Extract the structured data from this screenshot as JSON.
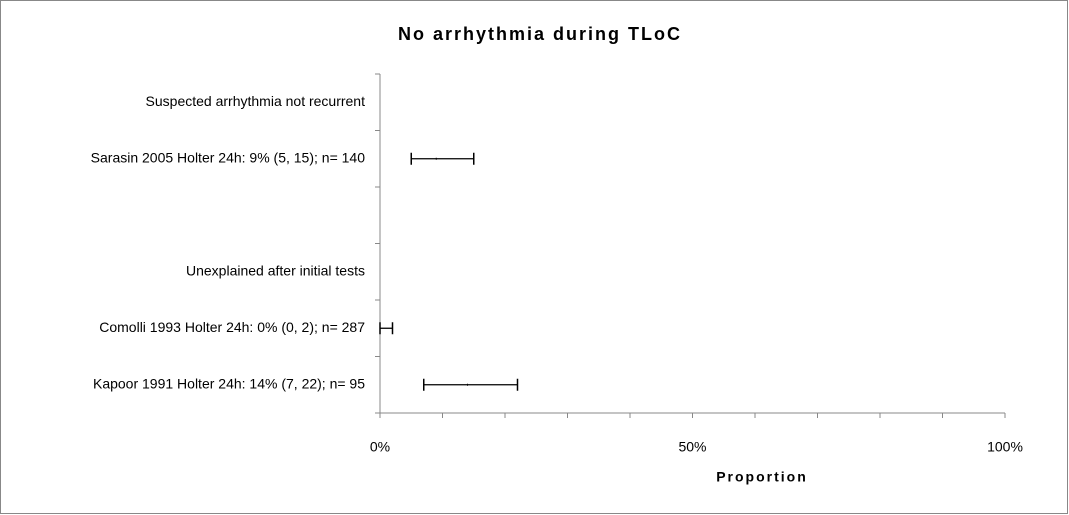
{
  "chart_data": {
    "type": "forest",
    "title": "No arrhythmia during TLoC",
    "x_label": "Proportion",
    "categories": [
      "Suspected arrhythmia not recurrent",
      "Sarasin 2005 Holter 24h: 9% (5, 15); n= 140",
      null,
      "Unexplained after initial tests",
      "Comolli 1993 Holter 24h: 0% (0, 2); n= 287",
      "Kapoor 1991 Holter 24h: 14% (7, 22); n= 95"
    ],
    "values": [
      null,
      9,
      null,
      null,
      0,
      14
    ],
    "ci_low": [
      null,
      5,
      null,
      null,
      0,
      7
    ],
    "ci_high": [
      null,
      15,
      null,
      null,
      2,
      22
    ],
    "color": "#000000",
    "xlim": [
      0,
      100
    ],
    "xticks": [
      {
        "value": 0,
        "label": "0%"
      },
      {
        "value": 50,
        "label": "50%"
      },
      {
        "value": 100,
        "label": "100%"
      }
    ],
    "xminor_ticks": [
      10,
      20,
      30,
      40,
      60,
      70,
      80,
      90
    ]
  }
}
